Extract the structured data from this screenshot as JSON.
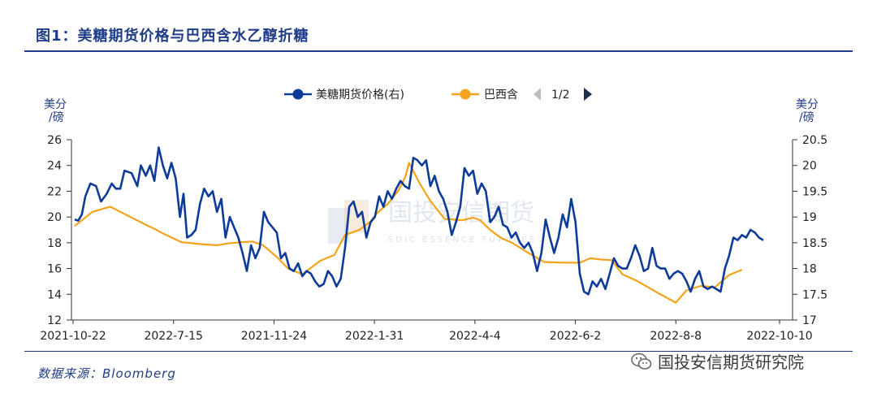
{
  "title": "图1：美糖期货价格与巴西含水乙醇折糖",
  "source": "数据来源：Bloomberg",
  "watermark": {
    "main": "国投安信期货",
    "sub": "SDIC ESSENCE FUTURES"
  },
  "wechat": {
    "label": "国投安信期货研究院",
    "icon": "wechat-icon"
  },
  "colors": {
    "series_blue": "#0d3b9a",
    "series_orange": "#f5a31a",
    "accent": "#1f3c88"
  },
  "chart_data": {
    "type": "line",
    "title": "美糖期货价格与巴西含水乙醇折糖",
    "legend": {
      "items": [
        "美糖期货价格(右)",
        "巴西含"
      ],
      "pager": "1/2",
      "placement": "top-center"
    },
    "left_axis": {
      "unit": "美分/磅",
      "ylim": [
        12,
        26
      ],
      "ticks": [
        "12",
        "14",
        "16",
        "18",
        "20",
        "22",
        "24",
        "26"
      ]
    },
    "right_axis": {
      "unit": "美分/磅",
      "ylim": [
        17,
        20.5
      ],
      "ticks": [
        "17",
        "17.5",
        "18",
        "18.5",
        "19",
        "19.5",
        "20",
        "20.5"
      ]
    },
    "x_tick_labels": [
      "2021-10-22",
      "2022-7-15",
      "2021-11-24",
      "2022-1-31",
      "2022-4-4",
      "2022-6-2",
      "2022-8-8",
      "2022-10-10"
    ],
    "x_range": [
      0,
      1
    ],
    "series": [
      {
        "name": "美糖期货价格(右)",
        "axis": "right",
        "color": "#0d3b9a",
        "points": [
          [
            0,
            18.95
          ],
          [
            0.005,
            18.93
          ],
          [
            0.01,
            19.05
          ],
          [
            0.015,
            19.4
          ],
          [
            0.022,
            19.65
          ],
          [
            0.03,
            19.6
          ],
          [
            0.037,
            19.3
          ],
          [
            0.045,
            19.45
          ],
          [
            0.052,
            19.65
          ],
          [
            0.058,
            19.55
          ],
          [
            0.064,
            19.55
          ],
          [
            0.07,
            19.9
          ],
          [
            0.08,
            19.85
          ],
          [
            0.088,
            19.6
          ],
          [
            0.093,
            20.0
          ],
          [
            0.1,
            19.8
          ],
          [
            0.106,
            20.0
          ],
          [
            0.112,
            19.7
          ],
          [
            0.118,
            20.35
          ],
          [
            0.124,
            20.0
          ],
          [
            0.13,
            19.75
          ],
          [
            0.136,
            20.05
          ],
          [
            0.142,
            19.75
          ],
          [
            0.148,
            19.0
          ],
          [
            0.153,
            19.45
          ],
          [
            0.158,
            18.6
          ],
          [
            0.164,
            18.65
          ],
          [
            0.17,
            18.75
          ],
          [
            0.176,
            19.25
          ],
          [
            0.182,
            19.55
          ],
          [
            0.188,
            19.4
          ],
          [
            0.194,
            19.5
          ],
          [
            0.2,
            19.1
          ],
          [
            0.206,
            19.35
          ],
          [
            0.212,
            18.6
          ],
          [
            0.218,
            19.0
          ],
          [
            0.224,
            18.8
          ],
          [
            0.23,
            18.6
          ],
          [
            0.236,
            18.3
          ],
          [
            0.242,
            17.95
          ],
          [
            0.248,
            18.45
          ],
          [
            0.254,
            18.2
          ],
          [
            0.26,
            18.4
          ],
          [
            0.266,
            19.1
          ],
          [
            0.272,
            18.9
          ],
          [
            0.278,
            18.8
          ],
          [
            0.284,
            18.7
          ],
          [
            0.29,
            18.2
          ],
          [
            0.296,
            18.3
          ],
          [
            0.302,
            18.0
          ],
          [
            0.308,
            17.95
          ],
          [
            0.314,
            18.1
          ],
          [
            0.32,
            17.85
          ],
          [
            0.326,
            17.95
          ],
          [
            0.332,
            17.9
          ],
          [
            0.338,
            17.75
          ],
          [
            0.344,
            17.65
          ],
          [
            0.35,
            17.7
          ],
          [
            0.356,
            17.95
          ],
          [
            0.362,
            17.85
          ],
          [
            0.368,
            17.65
          ],
          [
            0.374,
            17.8
          ],
          [
            0.38,
            18.4
          ],
          [
            0.386,
            19.2
          ],
          [
            0.392,
            19.3
          ],
          [
            0.398,
            19.0
          ],
          [
            0.404,
            19.1
          ],
          [
            0.41,
            18.6
          ],
          [
            0.416,
            18.9
          ],
          [
            0.422,
            19.0
          ],
          [
            0.428,
            19.4
          ],
          [
            0.434,
            19.2
          ],
          [
            0.44,
            19.5
          ],
          [
            0.446,
            19.35
          ],
          [
            0.452,
            19.55
          ],
          [
            0.458,
            19.7
          ],
          [
            0.464,
            19.6
          ],
          [
            0.47,
            19.55
          ],
          [
            0.476,
            20.15
          ],
          [
            0.482,
            20.1
          ],
          [
            0.488,
            20.0
          ],
          [
            0.494,
            20.1
          ],
          [
            0.5,
            19.6
          ],
          [
            0.506,
            19.8
          ],
          [
            0.512,
            19.5
          ],
          [
            0.518,
            19.35
          ],
          [
            0.524,
            19.1
          ],
          [
            0.53,
            18.65
          ],
          [
            0.536,
            18.9
          ],
          [
            0.542,
            19.2
          ],
          [
            0.548,
            19.95
          ],
          [
            0.554,
            19.8
          ],
          [
            0.56,
            19.9
          ],
          [
            0.566,
            19.45
          ],
          [
            0.572,
            19.65
          ],
          [
            0.578,
            19.5
          ],
          [
            0.584,
            18.9
          ],
          [
            0.59,
            19.0
          ],
          [
            0.596,
            19.2
          ],
          [
            0.602,
            18.85
          ],
          [
            0.608,
            18.8
          ],
          [
            0.614,
            18.6
          ],
          [
            0.62,
            18.7
          ],
          [
            0.626,
            18.5
          ],
          [
            0.632,
            18.4
          ],
          [
            0.638,
            18.5
          ],
          [
            0.644,
            18.3
          ],
          [
            0.65,
            17.95
          ],
          [
            0.656,
            18.3
          ],
          [
            0.662,
            18.95
          ],
          [
            0.668,
            18.6
          ],
          [
            0.674,
            18.3
          ],
          [
            0.68,
            18.6
          ],
          [
            0.686,
            19.05
          ],
          [
            0.692,
            18.8
          ],
          [
            0.698,
            19.35
          ],
          [
            0.704,
            18.9
          ],
          [
            0.71,
            17.9
          ],
          [
            0.716,
            17.55
          ],
          [
            0.722,
            17.5
          ],
          [
            0.728,
            17.75
          ],
          [
            0.734,
            17.65
          ],
          [
            0.74,
            17.8
          ],
          [
            0.746,
            17.6
          ],
          [
            0.752,
            17.9
          ],
          [
            0.758,
            18.2
          ],
          [
            0.764,
            18.05
          ],
          [
            0.77,
            18.0
          ],
          [
            0.776,
            18.0
          ],
          [
            0.782,
            18.2
          ],
          [
            0.788,
            18.45
          ],
          [
            0.794,
            18.25
          ],
          [
            0.8,
            17.95
          ],
          [
            0.806,
            18.0
          ],
          [
            0.812,
            18.4
          ],
          [
            0.818,
            18.05
          ],
          [
            0.824,
            18.0
          ],
          [
            0.83,
            18.0
          ],
          [
            0.836,
            17.8
          ],
          [
            0.842,
            17.9
          ],
          [
            0.848,
            17.95
          ],
          [
            0.854,
            17.9
          ],
          [
            0.86,
            17.75
          ],
          [
            0.866,
            17.55
          ],
          [
            0.872,
            17.8
          ],
          [
            0.878,
            17.95
          ],
          [
            0.884,
            17.65
          ],
          [
            0.89,
            17.6
          ],
          [
            0.896,
            17.65
          ],
          [
            0.902,
            17.6
          ],
          [
            0.908,
            17.55
          ],
          [
            0.914,
            18.0
          ],
          [
            0.92,
            18.25
          ],
          [
            0.926,
            18.6
          ],
          [
            0.932,
            18.55
          ],
          [
            0.938,
            18.65
          ],
          [
            0.944,
            18.6
          ],
          [
            0.95,
            18.75
          ],
          [
            0.956,
            18.7
          ],
          [
            0.962,
            18.6
          ],
          [
            0.968,
            18.55
          ]
        ]
      },
      {
        "name": "巴西含水乙醇折糖",
        "axis": "left",
        "color": "#f5a31a",
        "points": [
          [
            0,
            19.3
          ],
          [
            0.025,
            20.4
          ],
          [
            0.05,
            20.8
          ],
          [
            0.075,
            20.1
          ],
          [
            0.1,
            19.4
          ],
          [
            0.115,
            19.0
          ],
          [
            0.125,
            18.7
          ],
          [
            0.15,
            18.05
          ],
          [
            0.175,
            17.9
          ],
          [
            0.2,
            17.8
          ],
          [
            0.215,
            17.95
          ],
          [
            0.235,
            18.05
          ],
          [
            0.25,
            18.1
          ],
          [
            0.265,
            17.8
          ],
          [
            0.285,
            16.85
          ],
          [
            0.3,
            16.0
          ],
          [
            0.32,
            15.55
          ],
          [
            0.345,
            16.6
          ],
          [
            0.365,
            17.05
          ],
          [
            0.38,
            18.6
          ],
          [
            0.4,
            19.0
          ],
          [
            0.415,
            19.6
          ],
          [
            0.425,
            20.3
          ],
          [
            0.44,
            21.0
          ],
          [
            0.455,
            22.05
          ],
          [
            0.465,
            23.15
          ],
          [
            0.47,
            24.2
          ],
          [
            0.485,
            22.6
          ],
          [
            0.5,
            21.25
          ],
          [
            0.52,
            19.85
          ],
          [
            0.545,
            19.75
          ],
          [
            0.56,
            19.95
          ],
          [
            0.57,
            19.75
          ],
          [
            0.585,
            18.95
          ],
          [
            0.6,
            18.35
          ],
          [
            0.615,
            18.0
          ],
          [
            0.635,
            17.3
          ],
          [
            0.66,
            16.5
          ],
          [
            0.69,
            16.45
          ],
          [
            0.71,
            16.45
          ],
          [
            0.725,
            16.8
          ],
          [
            0.74,
            16.7
          ],
          [
            0.755,
            16.65
          ],
          [
            0.77,
            15.55
          ],
          [
            0.79,
            15.05
          ],
          [
            0.82,
            14.1
          ],
          [
            0.845,
            13.35
          ],
          [
            0.86,
            14.3
          ],
          [
            0.88,
            14.65
          ],
          [
            0.9,
            14.55
          ],
          [
            0.92,
            15.5
          ],
          [
            0.938,
            15.9
          ]
        ]
      }
    ]
  }
}
